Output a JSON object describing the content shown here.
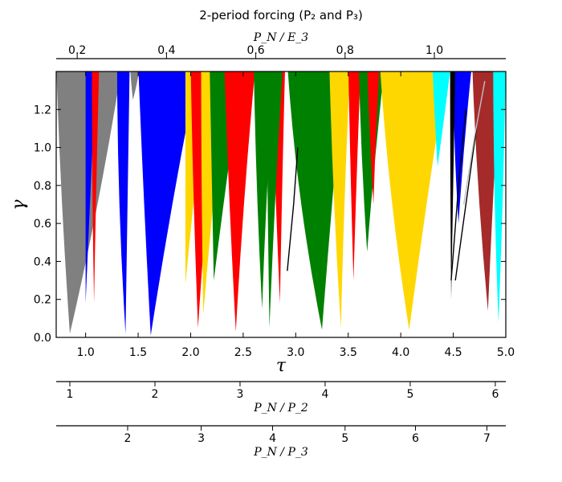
{
  "chart_data": {
    "type": "area",
    "title": "2-period forcing (P₂ and P₃)",
    "xlabel": "τ",
    "ylabel": "γ",
    "xlim": [
      0.72,
      5.0
    ],
    "ylim": [
      0.0,
      1.4
    ],
    "x_ticks": [
      1.0,
      1.5,
      2.0,
      2.5,
      3.0,
      3.5,
      4.0,
      4.5,
      5.0
    ],
    "x_tick_labels": [
      "1.0",
      "1.5",
      "2.0",
      "2.5",
      "3.0",
      "3.5",
      "4.0",
      "4.5",
      "5.0"
    ],
    "y_ticks": [
      0.0,
      0.2,
      0.4,
      0.6,
      0.8,
      1.0,
      1.2
    ],
    "y_tick_labels": [
      "0.0",
      "0.2",
      "0.4",
      "0.6",
      "0.8",
      "1.0",
      "1.2"
    ],
    "grid": false,
    "legend": "none",
    "top_axis": {
      "label": "P_N / E_3",
      "tick_labels": [
        "0.2",
        "0.4",
        "0.6",
        "0.8",
        "1.0"
      ],
      "tick_tau": [
        0.92,
        1.77,
        2.62,
        3.47,
        4.32
      ]
    },
    "secondary_axes": [
      {
        "label": "P_N / P_2",
        "tick_labels": [
          "1",
          "2",
          "3",
          "4",
          "5",
          "6"
        ],
        "tick_tau": [
          0.85,
          1.66,
          2.47,
          3.28,
          4.09,
          4.9
        ]
      },
      {
        "label": "P_N / P_3",
        "tick_labels": [
          "2",
          "3",
          "4",
          "5",
          "6",
          "7"
        ],
        "tick_tau": [
          1.4,
          2.1,
          2.78,
          3.47,
          4.14,
          4.82
        ]
      }
    ],
    "regions": [
      {
        "color": "#808080",
        "tip": [
          0.85,
          0.02
        ],
        "left_top": 0.72,
        "right_top": 1.35,
        "left_ctrl": 0.76,
        "right_ctrl": 1.15
      },
      {
        "color": "#808080",
        "tip": [
          1.45,
          1.25
        ],
        "left_top": 1.42,
        "right_top": 1.52,
        "left_ctrl": 1.43,
        "right_ctrl": 1.5
      },
      {
        "color": "#0000ff",
        "tip": [
          1.38,
          0.02
        ],
        "left_top": 1.3,
        "right_top": 1.42,
        "left_ctrl": 1.3,
        "right_ctrl": 1.4
      },
      {
        "color": "#0000ff",
        "tip": [
          1.62,
          0.01
        ],
        "left_top": 1.5,
        "right_top": 2.08,
        "left_ctrl": 1.55,
        "right_ctrl": 1.82
      },
      {
        "color": "#0000ff",
        "tip": [
          1.0,
          0.18
        ],
        "left_top": 1.0,
        "right_top": 1.1,
        "left_ctrl": 1.0,
        "right_ctrl": 1.05
      },
      {
        "color": "#ff0000",
        "tip": [
          1.08,
          0.18
        ],
        "left_top": 1.06,
        "right_top": 1.13,
        "left_ctrl": 1.06,
        "right_ctrl": 1.1
      },
      {
        "color": "#ffd700",
        "tip": [
          1.95,
          0.28
        ],
        "left_top": 1.95,
        "right_top": 2.18,
        "left_ctrl": 1.95,
        "right_ctrl": 2.05
      },
      {
        "color": "#ff0000",
        "tip": [
          2.07,
          0.05
        ],
        "left_top": 2.0,
        "right_top": 2.28,
        "left_ctrl": 2.02,
        "right_ctrl": 2.15
      },
      {
        "color": "#ffd700",
        "tip": [
          2.12,
          0.12
        ],
        "left_top": 2.1,
        "right_top": 2.35,
        "left_ctrl": 2.1,
        "right_ctrl": 2.22
      },
      {
        "color": "#008000",
        "tip": [
          2.22,
          0.3
        ],
        "left_top": 2.18,
        "right_top": 2.5,
        "left_ctrl": 2.2,
        "right_ctrl": 2.35
      },
      {
        "color": "#ff0000",
        "tip": [
          2.43,
          0.03
        ],
        "left_top": 2.32,
        "right_top": 2.62,
        "left_ctrl": 2.36,
        "right_ctrl": 2.5
      },
      {
        "color": "#008000",
        "tip": [
          2.68,
          0.15
        ],
        "left_top": 2.6,
        "right_top": 2.8,
        "left_ctrl": 2.62,
        "right_ctrl": 2.72
      },
      {
        "color": "#ff0000",
        "tip": [
          2.85,
          0.18
        ],
        "left_top": 2.77,
        "right_top": 2.9,
        "left_ctrl": 2.8,
        "right_ctrl": 2.87
      },
      {
        "color": "#008000",
        "tip": [
          2.75,
          0.05
        ],
        "left_top": 2.72,
        "right_top": 2.88,
        "left_ctrl": 2.73,
        "right_ctrl": 2.8
      },
      {
        "color": "#008000",
        "tip": [
          3.25,
          0.04
        ],
        "left_top": 2.92,
        "right_top": 3.46,
        "left_ctrl": 3.0,
        "right_ctrl": 3.35
      },
      {
        "color": "#ffd700",
        "tip": [
          3.43,
          0.05
        ],
        "left_top": 3.32,
        "right_top": 3.52,
        "left_ctrl": 3.35,
        "right_ctrl": 3.46
      },
      {
        "color": "#ff0000",
        "tip": [
          3.55,
          0.3
        ],
        "left_top": 3.5,
        "right_top": 3.62,
        "left_ctrl": 3.52,
        "right_ctrl": 3.58
      },
      {
        "color": "#008000",
        "tip": [
          3.68,
          0.45
        ],
        "left_top": 3.6,
        "right_top": 3.85,
        "left_ctrl": 3.62,
        "right_ctrl": 3.75
      },
      {
        "color": "#ff0000",
        "tip": [
          3.74,
          0.7
        ],
        "left_top": 3.68,
        "right_top": 3.8,
        "left_ctrl": 3.7,
        "right_ctrl": 3.76
      },
      {
        "color": "#ffd700",
        "tip": [
          4.08,
          0.04
        ],
        "left_top": 3.8,
        "right_top": 4.45,
        "left_ctrl": 3.88,
        "right_ctrl": 4.25
      },
      {
        "color": "#00ffff",
        "tip": [
          4.35,
          0.9
        ],
        "left_top": 4.3,
        "right_top": 4.48,
        "left_ctrl": 4.32,
        "right_ctrl": 4.42
      },
      {
        "color": "#0000ff",
        "tip": [
          4.55,
          0.6
        ],
        "left_top": 4.5,
        "right_top": 4.68,
        "left_ctrl": 4.5,
        "right_ctrl": 4.6
      },
      {
        "color": "#000000",
        "tip": [
          4.48,
          0.2
        ],
        "left_top": 4.47,
        "right_top": 4.52,
        "left_ctrl": 4.47,
        "right_ctrl": 4.5
      },
      {
        "color": "#a52a2a",
        "tip": [
          4.83,
          0.14
        ],
        "left_top": 4.68,
        "right_top": 4.95,
        "left_ctrl": 4.72,
        "right_ctrl": 4.88
      },
      {
        "color": "#00ffff",
        "tip": [
          4.93,
          0.08
        ],
        "left_top": 4.88,
        "right_top": 5.0,
        "left_ctrl": 4.88,
        "right_ctrl": 4.98
      }
    ],
    "curves": [
      {
        "color": "#000000",
        "points": [
          [
            4.48,
            0.3
          ],
          [
            4.55,
            0.8
          ],
          [
            4.62,
            1.2
          ]
        ]
      },
      {
        "color": "#000000",
        "points": [
          [
            4.52,
            0.3
          ],
          [
            4.62,
            0.7
          ],
          [
            4.72,
            1.1
          ]
        ]
      },
      {
        "color": "#000000",
        "points": [
          [
            2.92,
            0.35
          ],
          [
            2.98,
            0.7
          ],
          [
            3.02,
            1.0
          ]
        ]
      },
      {
        "color": "#c0c0c0",
        "points": [
          [
            4.6,
            0.7
          ],
          [
            4.7,
            1.05
          ],
          [
            4.8,
            1.35
          ]
        ]
      }
    ]
  }
}
